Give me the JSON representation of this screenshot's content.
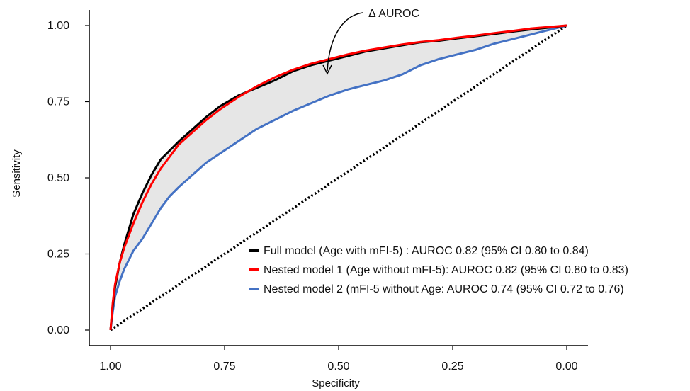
{
  "chart_data": {
    "type": "line",
    "title": "",
    "xlabel": "Specificity",
    "ylabel": "Sensitivity",
    "xlim": [
      1.0,
      0.0
    ],
    "ylim": [
      0.0,
      1.0
    ],
    "x_reversed": true,
    "x_ticks": [
      1.0,
      0.75,
      0.5,
      0.25,
      0.0
    ],
    "x_tick_labels": [
      "1.00",
      "0.75",
      "0.50",
      "0.25",
      "0.00"
    ],
    "y_ticks": [
      0.0,
      0.25,
      0.5,
      0.75,
      1.0
    ],
    "y_tick_labels": [
      "0.00",
      "0.25",
      "0.50",
      "0.75",
      "1.00"
    ],
    "grid": false,
    "legend_position": "bottom-right",
    "annotation": {
      "text": "Δ AUROC",
      "target": [
        0.525,
        0.845
      ]
    },
    "shaded_region": {
      "between": [
        "Full model (Age with mFI-5) : AUROC 0.82 (95% CI 0.80 to 0.84)",
        "Nested model 2 (mFI-5 without Age: AUROC 0.74 (95% CI 0.72 to 0.76)"
      ],
      "color": "#e6e6e6"
    },
    "reference_line": {
      "points": [
        [
          1.0,
          0.0
        ],
        [
          0.0,
          1.0
        ]
      ],
      "style": "dotted",
      "color": "#000000"
    },
    "series": [
      {
        "name": "Full model (Age with mFI-5) : AUROC 0.82 (95% CI 0.80 to 0.84)",
        "color": "#000000",
        "x": [
          1.0,
          0.995,
          0.99,
          0.98,
          0.97,
          0.96,
          0.95,
          0.93,
          0.91,
          0.89,
          0.87,
          0.85,
          0.82,
          0.79,
          0.76,
          0.72,
          0.68,
          0.64,
          0.6,
          0.56,
          0.52,
          0.48,
          0.44,
          0.4,
          0.36,
          0.32,
          0.28,
          0.24,
          0.2,
          0.16,
          0.12,
          0.08,
          0.04,
          0.0
        ],
        "y": [
          0.0,
          0.08,
          0.14,
          0.22,
          0.28,
          0.33,
          0.38,
          0.45,
          0.51,
          0.56,
          0.59,
          0.62,
          0.66,
          0.7,
          0.735,
          0.77,
          0.795,
          0.82,
          0.85,
          0.87,
          0.885,
          0.9,
          0.915,
          0.925,
          0.935,
          0.945,
          0.95,
          0.958,
          0.965,
          0.972,
          0.98,
          0.987,
          0.993,
          1.0
        ]
      },
      {
        "name": "Nested model 1 (Age without mFI-5): AUROC 0.82 (95% CI 0.80 to 0.83)",
        "color": "#ff0000",
        "x": [
          1.0,
          0.995,
          0.99,
          0.98,
          0.97,
          0.96,
          0.95,
          0.93,
          0.91,
          0.89,
          0.87,
          0.85,
          0.82,
          0.79,
          0.76,
          0.72,
          0.68,
          0.64,
          0.6,
          0.56,
          0.52,
          0.48,
          0.44,
          0.4,
          0.36,
          0.32,
          0.28,
          0.24,
          0.2,
          0.16,
          0.12,
          0.08,
          0.04,
          0.0
        ],
        "y": [
          0.0,
          0.09,
          0.15,
          0.22,
          0.27,
          0.31,
          0.35,
          0.42,
          0.48,
          0.53,
          0.57,
          0.61,
          0.65,
          0.69,
          0.725,
          0.765,
          0.8,
          0.83,
          0.855,
          0.875,
          0.89,
          0.905,
          0.918,
          0.928,
          0.938,
          0.946,
          0.952,
          0.96,
          0.967,
          0.975,
          0.982,
          0.99,
          0.995,
          1.0
        ]
      },
      {
        "name": "Nested model 2 (mFI-5 without Age: AUROC 0.74 (95% CI 0.72 to 0.76)",
        "color": "#4472c4",
        "x": [
          1.0,
          0.995,
          0.99,
          0.98,
          0.97,
          0.96,
          0.95,
          0.93,
          0.91,
          0.89,
          0.87,
          0.85,
          0.82,
          0.79,
          0.76,
          0.72,
          0.68,
          0.64,
          0.6,
          0.56,
          0.52,
          0.48,
          0.44,
          0.4,
          0.36,
          0.32,
          0.28,
          0.24,
          0.2,
          0.16,
          0.12,
          0.08,
          0.04,
          0.0
        ],
        "y": [
          0.0,
          0.06,
          0.11,
          0.16,
          0.2,
          0.23,
          0.26,
          0.3,
          0.35,
          0.4,
          0.44,
          0.47,
          0.51,
          0.55,
          0.58,
          0.62,
          0.66,
          0.69,
          0.72,
          0.745,
          0.77,
          0.79,
          0.805,
          0.82,
          0.84,
          0.87,
          0.89,
          0.905,
          0.92,
          0.94,
          0.955,
          0.97,
          0.985,
          1.0
        ]
      }
    ]
  }
}
